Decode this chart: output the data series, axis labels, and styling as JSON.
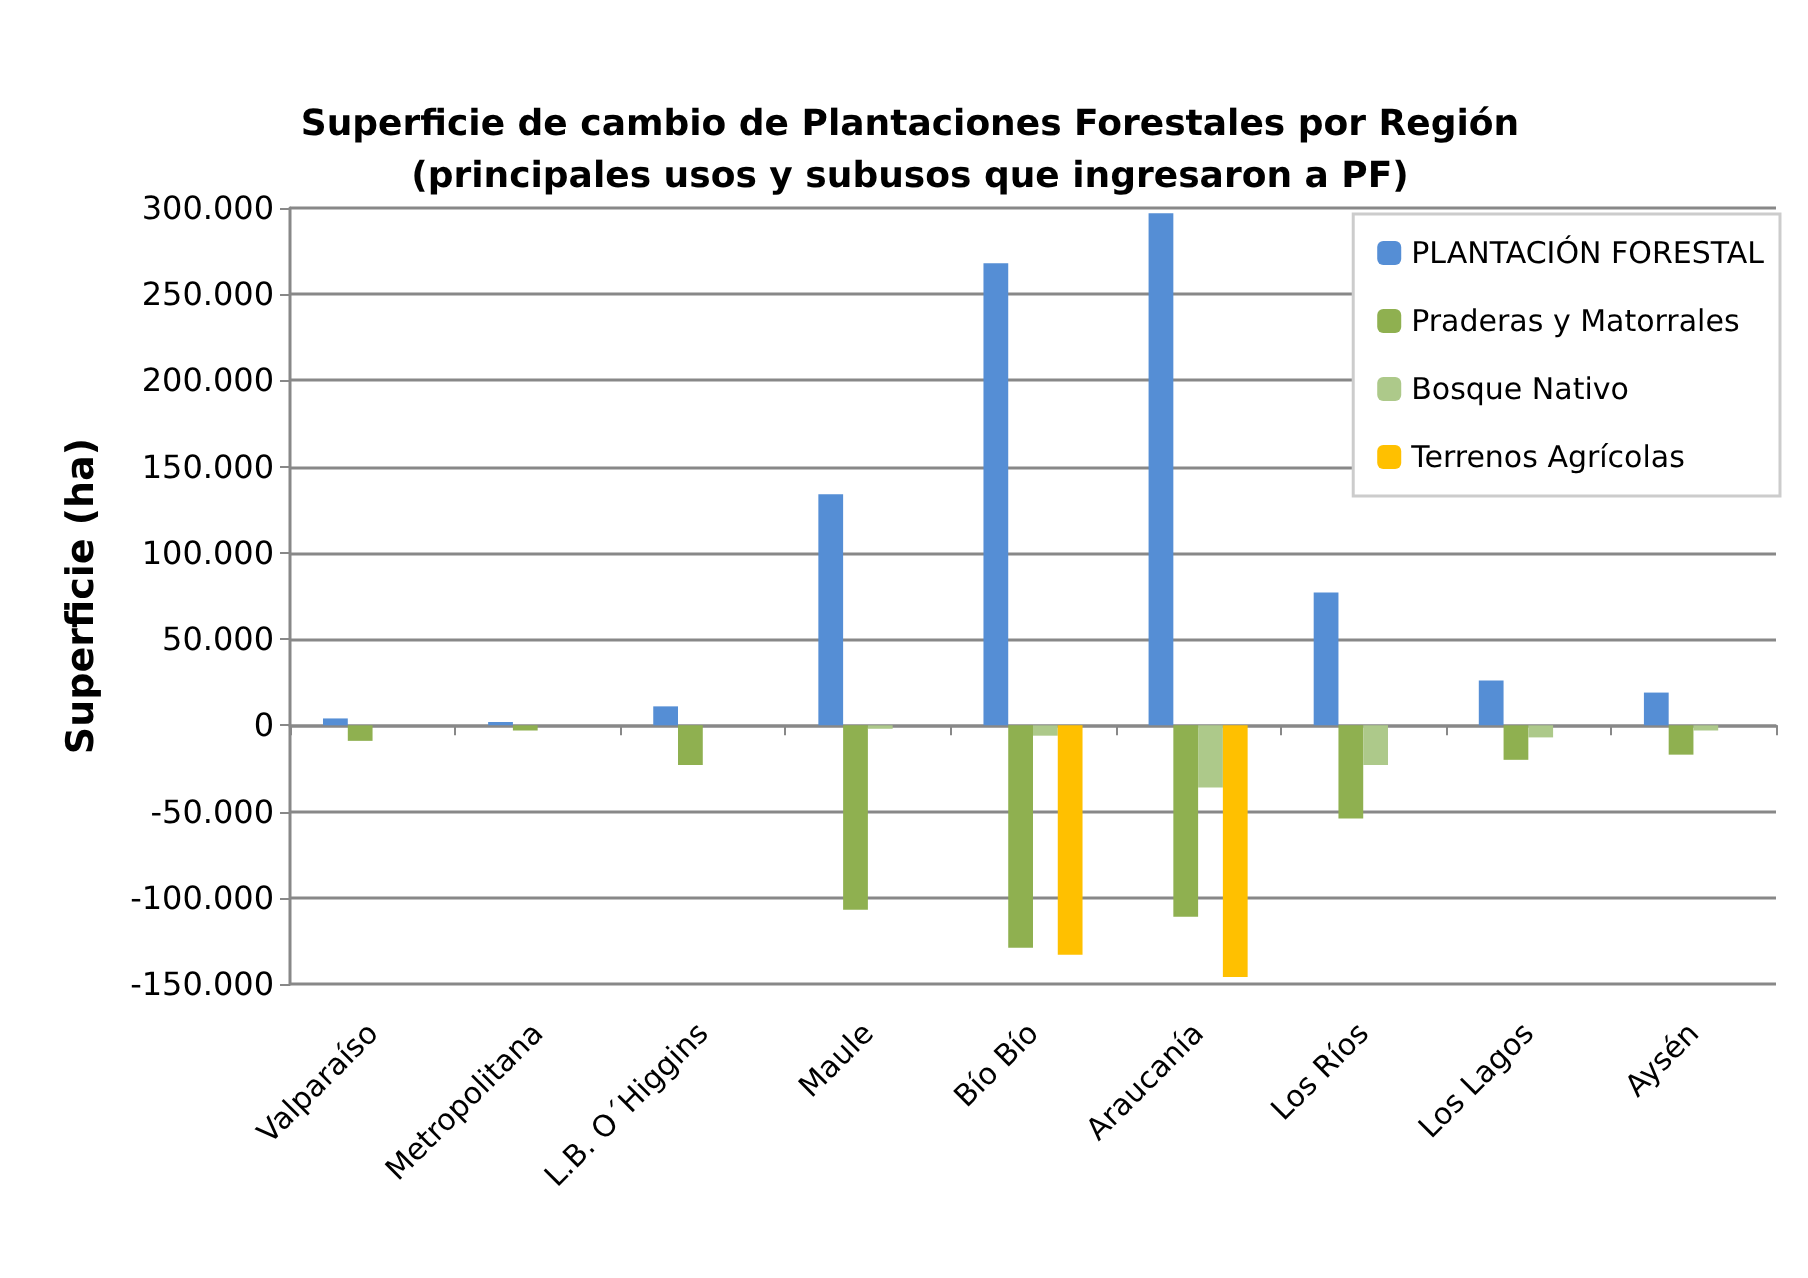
{
  "chart_data": {
    "type": "bar",
    "title": "Superficie de cambio de Plantaciones Forestales por Región\n(principales usos y subusos que ingresaron a PF)",
    "ylabel": "Superficie (ha)",
    "categories": [
      "Valparaíso",
      "Metropolitana",
      "L.B. O´Higgins",
      "Maule",
      "Bío Bío",
      "Araucanía",
      "Los Ríos",
      "Los Lagos",
      "Aysén"
    ],
    "series": [
      {
        "name": "PLANTACIÓN FORESTAL",
        "color": "#558ed5",
        "values": [
          4000,
          2000,
          11000,
          134000,
          268000,
          297000,
          77000,
          26000,
          19000
        ]
      },
      {
        "name": "Praderas y Matorrales",
        "color": "#8fb050",
        "values": [
          -9000,
          -3000,
          -23000,
          -107000,
          -129000,
          -111000,
          -54000,
          -20000,
          -17000
        ]
      },
      {
        "name": "Bosque Nativo",
        "color": "#adc98a",
        "values": [
          null,
          null,
          null,
          -2000,
          -6000,
          -36000,
          -23000,
          -7000,
          -3000
        ]
      },
      {
        "name": "Terrenos Agrícolas",
        "color": "#ffc000",
        "values": [
          null,
          null,
          null,
          null,
          -133000,
          -146000,
          null,
          null,
          null
        ]
      }
    ],
    "ylim": [
      -150000,
      300000
    ],
    "yticks": [
      {
        "value": -150000,
        "label": "-150.000"
      },
      {
        "value": -100000,
        "label": "-100.000"
      },
      {
        "value": -50000,
        "label": "-50.000"
      },
      {
        "value": 0,
        "label": "0"
      },
      {
        "value": 50000,
        "label": "50.000"
      },
      {
        "value": 100000,
        "label": "100.000"
      },
      {
        "value": 150000,
        "label": "150.000"
      },
      {
        "value": 200000,
        "label": "200.000"
      },
      {
        "value": 250000,
        "label": "250.000"
      },
      {
        "value": 300000,
        "label": "300.000"
      }
    ],
    "grid": "y",
    "legend": "top right"
  }
}
